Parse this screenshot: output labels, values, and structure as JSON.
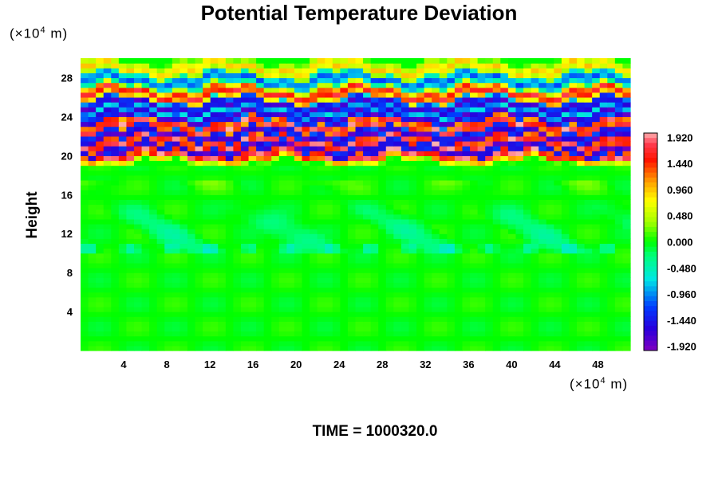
{
  "chart_data": {
    "type": "heatmap",
    "title": "Potential Temperature Deviation",
    "ylabel": "Height",
    "x_unit": [
      "(×10",
      "4",
      " m)"
    ],
    "y_unit": [
      "(×10",
      "4",
      " m)"
    ],
    "footer": "TIME = 1000320.0",
    "xlim": [
      0,
      51
    ],
    "ylim": [
      0,
      30
    ],
    "x_ticks": [
      4,
      8,
      12,
      16,
      20,
      24,
      28,
      32,
      36,
      40,
      44,
      48
    ],
    "y_ticks": [
      4,
      8,
      12,
      16,
      20,
      24,
      28
    ],
    "colorbar": {
      "min": -2.0,
      "max": 2.0,
      "tick_labels": [
        "1.920",
        "1.440",
        "0.960",
        "0.480",
        "0.000",
        "-0.480",
        "-0.960",
        "-1.440",
        "-1.920"
      ],
      "tick_values": [
        1.92,
        1.44,
        0.96,
        0.48,
        0.0,
        -0.48,
        -0.96,
        -1.44,
        -1.92
      ]
    },
    "field_description": {
      "height_0_to_19": "near 0 (green) with weak positive patches around height 10-17",
      "height_19_to_30": "strong alternating positive/negative layered bands, amplitude beyond ±1.92"
    },
    "bands": [
      {
        "y": 20.0,
        "value": 2.0
      },
      {
        "y": 20.7,
        "value": -2.0
      },
      {
        "y": 21.4,
        "value": 2.0
      },
      {
        "y": 22.2,
        "value": -2.0
      },
      {
        "y": 23.1,
        "value": 2.0
      },
      {
        "y": 24.0,
        "value": -1.9
      },
      {
        "y": 25.2,
        "value": -1.9
      },
      {
        "y": 26.4,
        "value": 1.8
      },
      {
        "y": 27.8,
        "value": -1.2
      },
      {
        "y": 29.0,
        "value": 1.0
      }
    ]
  },
  "colors": {
    "background": "#ffffff",
    "pos_max": "#ffb0b0",
    "neg_max": "#8000c0",
    "zero": "#00ff00"
  }
}
